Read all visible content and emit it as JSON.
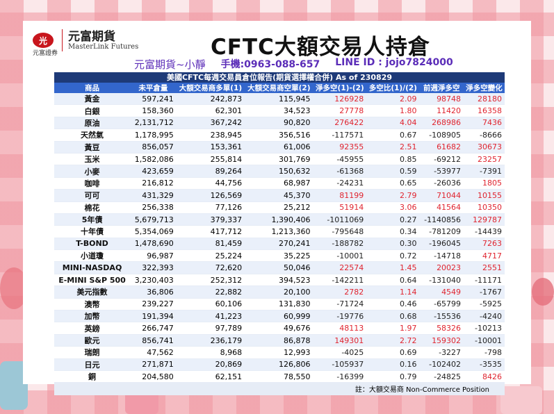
{
  "brand": {
    "logo_mark": "光",
    "logo_sub": "元富證券",
    "name_zh": "元富期貨",
    "name_en": "MasterLink Futures"
  },
  "title": "CFTC大額交易人持倉",
  "contact": {
    "name": "元富期貨~小靜",
    "phone": "手機:0963-088-657",
    "line": "LINE ID : jojo7824000"
  },
  "table": {
    "caption": "美國CFTC每週交易員倉位報告(期貨選擇權合併) As of  230829",
    "headers": [
      "商品",
      "未平倉量",
      "大額交易商多單(1)",
      "大額交易商空單(2)",
      "淨多空(1)-(2)",
      "多空比(1)/(2)",
      "前週淨多空",
      "淨多空變化"
    ],
    "rows": [
      [
        "黃金",
        "597,241",
        "242,873",
        "115,945",
        "126928",
        "2.09",
        "98748",
        "28180"
      ],
      [
        "白銀",
        "158,360",
        "62,301",
        "34,523",
        "27778",
        "1.80",
        "11420",
        "16358"
      ],
      [
        "原油",
        "2,131,712",
        "367,242",
        "90,820",
        "276422",
        "4.04",
        "268986",
        "7436"
      ],
      [
        "天然氣",
        "1,178,995",
        "238,945",
        "356,516",
        "-117571",
        "0.67",
        "-108905",
        "-8666"
      ],
      [
        "黃豆",
        "856,057",
        "153,361",
        "61,006",
        "92355",
        "2.51",
        "61682",
        "30673"
      ],
      [
        "玉米",
        "1,582,086",
        "255,814",
        "301,769",
        "-45955",
        "0.85",
        "-69212",
        "23257"
      ],
      [
        "小麥",
        "423,659",
        "89,264",
        "150,632",
        "-61368",
        "0.59",
        "-53977",
        "-7391"
      ],
      [
        "咖啡",
        "216,812",
        "44,756",
        "68,987",
        "-24231",
        "0.65",
        "-26036",
        "1805"
      ],
      [
        "可可",
        "431,329",
        "126,569",
        "45,370",
        "81199",
        "2.79",
        "71044",
        "10155"
      ],
      [
        "棉花",
        "256,338",
        "77,126",
        "25,212",
        "51914",
        "3.06",
        "41564",
        "10350"
      ],
      [
        "5年債",
        "5,679,713",
        "379,337",
        "1,390,406",
        "-1011069",
        "0.27",
        "-1140856",
        "129787"
      ],
      [
        "十年債",
        "5,354,069",
        "417,712",
        "1,213,360",
        "-795648",
        "0.34",
        "-781209",
        "-14439"
      ],
      [
        "T-BOND",
        "1,478,690",
        "81,459",
        "270,241",
        "-188782",
        "0.30",
        "-196045",
        "7263"
      ],
      [
        "小道瓊",
        "96,987",
        "25,224",
        "35,225",
        "-10001",
        "0.72",
        "-14718",
        "4717"
      ],
      [
        "MINI-NASDAQ",
        "322,393",
        "72,620",
        "50,046",
        "22574",
        "1.45",
        "20023",
        "2551"
      ],
      [
        "E-MINI S&P 500",
        "3,230,403",
        "252,312",
        "394,523",
        "-142211",
        "0.64",
        "-131040",
        "-11171"
      ],
      [
        "美元指數",
        "36,806",
        "22,882",
        "20,100",
        "2782",
        "1.14",
        "4549",
        "-1767"
      ],
      [
        "澳幣",
        "239,227",
        "60,106",
        "131,830",
        "-71724",
        "0.46",
        "-65799",
        "-5925"
      ],
      [
        "加幣",
        "191,394",
        "41,223",
        "60,999",
        "-19776",
        "0.68",
        "-15536",
        "-4240"
      ],
      [
        "英鎊",
        "266,747",
        "97,789",
        "49,676",
        "48113",
        "1.97",
        "58326",
        "-10213"
      ],
      [
        "歐元",
        "856,741",
        "236,179",
        "86,878",
        "149301",
        "2.72",
        "159302",
        "-10001"
      ],
      [
        "瑞朗",
        "47,562",
        "8,968",
        "12,993",
        "-4025",
        "0.69",
        "-3227",
        "-798"
      ],
      [
        "日元",
        "271,871",
        "20,869",
        "126,806",
        "-105937",
        "0.16",
        "-102402",
        "-3535"
      ],
      [
        "銅",
        "204,580",
        "62,151",
        "78,550",
        "-16399",
        "0.79",
        "-24825",
        "8426"
      ]
    ],
    "note": "註：大額交易商 Non-Commerce Position"
  },
  "colors": {
    "header_dark": "#1e3a78",
    "header": "#3366cc",
    "positive": "#e0242f",
    "negative": "#222222",
    "contact": "#5b2db8"
  }
}
